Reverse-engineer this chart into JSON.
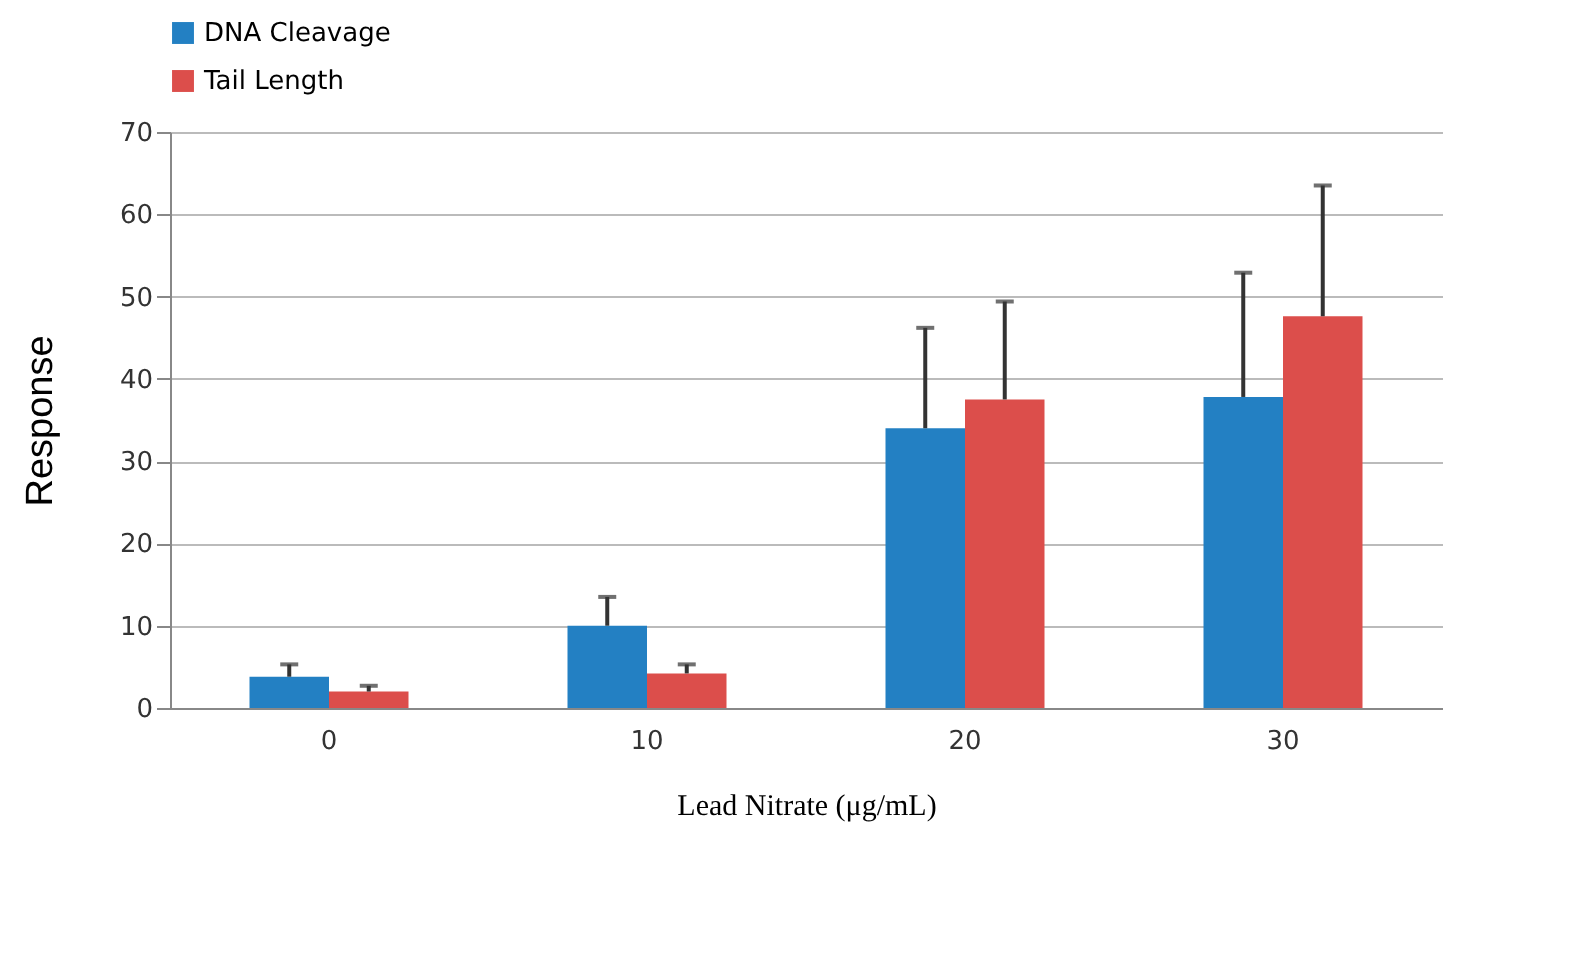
{
  "chart_data": {
    "type": "bar",
    "xlabel": "Lead Nitrate (μg/mL)",
    "ylabel": "Response",
    "categories": [
      "0",
      "10",
      "20",
      "30"
    ],
    "series": [
      {
        "name": "DNA Cleavage",
        "color": "#2380c3",
        "values": [
          3.8,
          10,
          34,
          37.8
        ],
        "errors": [
          [
            3.8,
            5.3
          ],
          [
            10,
            13.5
          ],
          [
            34,
            46.2
          ],
          [
            37.8,
            52.9
          ]
        ]
      },
      {
        "name": "Tail Length",
        "color": "#dc4e4b",
        "values": [
          2,
          4.2,
          37.5,
          47.6
        ],
        "errors": [
          [
            2,
            2.7
          ],
          [
            4.2,
            5.3
          ],
          [
            37.5,
            49.4
          ],
          [
            47.6,
            63.5
          ]
        ]
      }
    ],
    "ylim": [
      0,
      70
    ],
    "yticks": [
      0,
      10,
      20,
      30,
      40,
      50,
      60,
      70
    ],
    "grid": "y",
    "legend": "top"
  }
}
